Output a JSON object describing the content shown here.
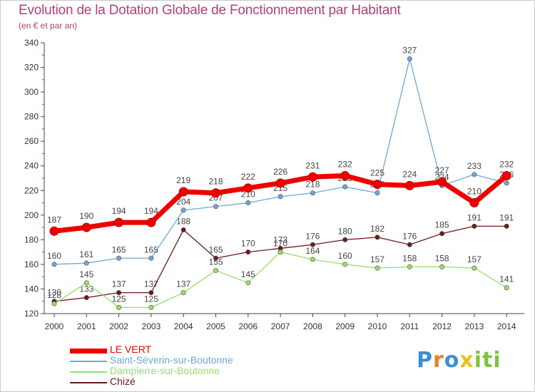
{
  "header": {
    "title": "Evolution de la Dotation Globale de Fonctionnement par Habitant",
    "subtitle": "(en € et par an)"
  },
  "logo": {
    "text": "Proxiti",
    "colors": [
      "#3a8fd6",
      "#e8812a",
      "#e8c21f",
      "#7fc241"
    ]
  },
  "chart_data": {
    "type": "line",
    "x": [
      "2000",
      "2001",
      "2002",
      "2003",
      "2004",
      "2005",
      "2006",
      "2007",
      "2008",
      "2009",
      "2010",
      "2011",
      "2012",
      "2013",
      "2014"
    ],
    "ylim": [
      120,
      340
    ],
    "yticks": [
      120,
      140,
      160,
      180,
      200,
      220,
      240,
      260,
      280,
      300,
      320,
      340
    ],
    "grid": false,
    "legend_position": "bottom-left",
    "series": [
      {
        "name": "LE VERT",
        "color": "#ee0000",
        "values": [
          187,
          190,
          194,
          194,
          219,
          218,
          222,
          226,
          231,
          232,
          225,
          224,
          227,
          210,
          232
        ]
      },
      {
        "name": "Saint-Séverin-sur-Boutonne",
        "color": "#6fa6d6",
        "values": [
          160,
          161,
          165,
          165,
          204,
          207,
          210,
          215,
          218,
          223,
          218,
          327,
          224,
          233,
          226
        ]
      },
      {
        "name": "Dampierre-sur-Boutonne",
        "color": "#99dd66",
        "values": [
          128,
          145,
          125,
          125,
          137,
          155,
          145,
          170,
          164,
          160,
          157,
          158,
          158,
          157,
          141
        ]
      },
      {
        "name": "Chizé",
        "color": "#6b1a1a",
        "values": [
          130,
          133,
          137,
          137,
          188,
          165,
          170,
          173,
          176,
          180,
          182,
          176,
          185,
          191,
          191
        ]
      }
    ]
  }
}
